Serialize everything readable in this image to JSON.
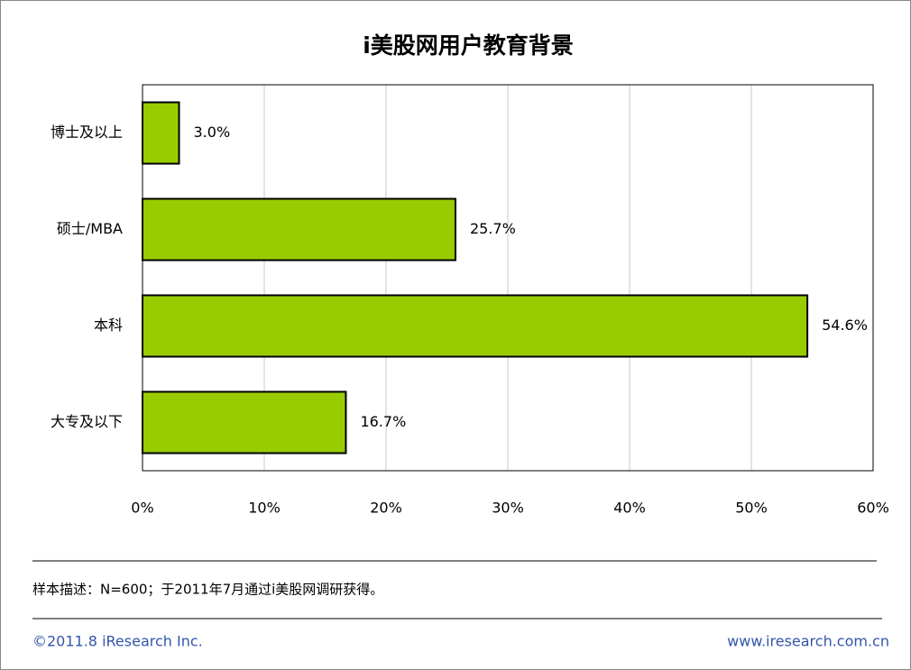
{
  "chart_data": {
    "type": "bar",
    "orientation": "horizontal",
    "title": "i美股网用户教育背景",
    "categories": [
      "博士及以上",
      "硕士/MBA",
      "本科",
      "大专及以下"
    ],
    "values": [
      3.0,
      25.7,
      54.6,
      16.7
    ],
    "value_labels": [
      "3.0%",
      "25.7%",
      "54.6%",
      "16.7%"
    ],
    "color": "#99cc00",
    "xlim": [
      0,
      60
    ],
    "xticks": [
      {
        "value": 0,
        "label": "0%"
      },
      {
        "value": 10,
        "label": "10%"
      },
      {
        "value": 20,
        "label": "20%"
      },
      {
        "value": 30,
        "label": "30%"
      },
      {
        "value": 40,
        "label": "40%"
      },
      {
        "value": 50,
        "label": "50%"
      },
      {
        "value": 60,
        "label": "60%"
      }
    ],
    "grid": true
  },
  "footer": {
    "note": "样本描述：N=600；于2011年7月通过i美股网调研获得。",
    "copyright": "©2011.8 iResearch Inc.",
    "url": "www.iresearch.com.cn"
  }
}
